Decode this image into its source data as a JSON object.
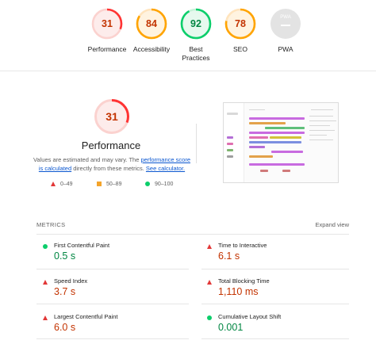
{
  "categories": [
    {
      "key": "performance",
      "score": "31",
      "label": "Performance",
      "status": "fail",
      "fraction": 0.31
    },
    {
      "key": "accessibility",
      "score": "84",
      "label": "Accessibility",
      "status": "average",
      "fraction": 0.84
    },
    {
      "key": "best-practices",
      "score": "92",
      "label": "Best\nPractices",
      "status": "pass",
      "fraction": 0.92
    },
    {
      "key": "seo",
      "score": "78",
      "label": "SEO",
      "status": "average",
      "fraction": 0.78
    },
    {
      "key": "pwa",
      "score": "",
      "label": "PWA",
      "badge_text": "PWA",
      "status": "na",
      "fraction": 0
    }
  ],
  "performance": {
    "score": "31",
    "fraction": 0.31,
    "title": "Performance",
    "desc_prefix": "Values are estimated and may vary. The ",
    "desc_link1": "performance score is calculated",
    "desc_middle": " directly from these metrics. ",
    "desc_link2": "See calculator."
  },
  "legend": [
    {
      "shape": "triangle",
      "range": "0–49"
    },
    {
      "shape": "square",
      "range": "50–89"
    },
    {
      "shape": "circle",
      "range": "90–100"
    }
  ],
  "metrics": {
    "header": "METRICS",
    "expand_label": "Expand view",
    "items": [
      {
        "label": "First Contentful Paint",
        "value": "0.5 s",
        "status": "pass"
      },
      {
        "label": "Time to Interactive",
        "value": "6.1 s",
        "status": "fail"
      },
      {
        "label": "Speed Index",
        "value": "3.7 s",
        "status": "fail"
      },
      {
        "label": "Total Blocking Time",
        "value": "1,110 ms",
        "status": "fail"
      },
      {
        "label": "Largest Contentful Paint",
        "value": "6.0 s",
        "status": "fail"
      },
      {
        "label": "Cumulative Layout Shift",
        "value": "0.001",
        "status": "pass"
      }
    ]
  },
  "colors": {
    "fail": "#ff3333",
    "fail_text": "#c33300",
    "fail_fill": "#fdeceb",
    "average": "#ffa400",
    "average_text": "#c33300",
    "average_fill": "#fff3e0",
    "pass": "#0cce6b",
    "pass_text": "#018642",
    "pass_fill": "#e6f9ee"
  }
}
